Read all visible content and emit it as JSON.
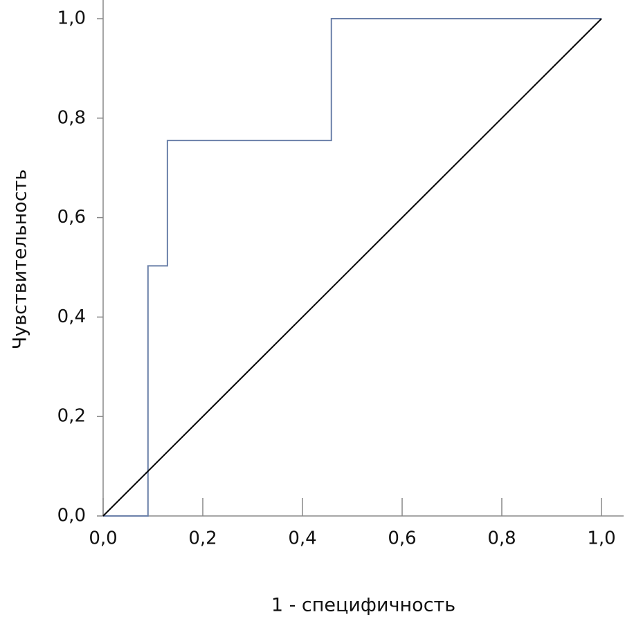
{
  "chart_data": {
    "type": "line",
    "x_label": "1 - специфичность",
    "y_label": "Чувствительность",
    "xlim": [
      0,
      1
    ],
    "ylim": [
      0,
      1
    ],
    "xticks": [
      {
        "value": 0,
        "label": "0,0"
      },
      {
        "value": 0.2,
        "label": "0,2"
      },
      {
        "value": 0.4,
        "label": "0,4"
      },
      {
        "value": 0.6,
        "label": "0,6"
      },
      {
        "value": 0.8,
        "label": "0,8"
      },
      {
        "value": 1,
        "label": "1,0"
      }
    ],
    "yticks": [
      {
        "value": 0,
        "label": "0,0"
      },
      {
        "value": 0.2,
        "label": "0,2"
      },
      {
        "value": 0.4,
        "label": "0,4"
      },
      {
        "value": 0.6,
        "label": "0,6"
      },
      {
        "value": 0.8,
        "label": "0,8"
      },
      {
        "value": 1,
        "label": "1,0"
      }
    ],
    "series": [
      {
        "color": "#6b80a9",
        "x": [
          0,
          0.09,
          0.09,
          0.129,
          0.129,
          0.458,
          0.458,
          1
        ],
        "values": [
          0,
          0,
          0.503,
          0.503,
          0.755,
          0.755,
          1,
          1
        ]
      },
      {
        "color": "#000000",
        "x": [
          0,
          1
        ],
        "values": [
          0,
          1
        ]
      }
    ]
  }
}
